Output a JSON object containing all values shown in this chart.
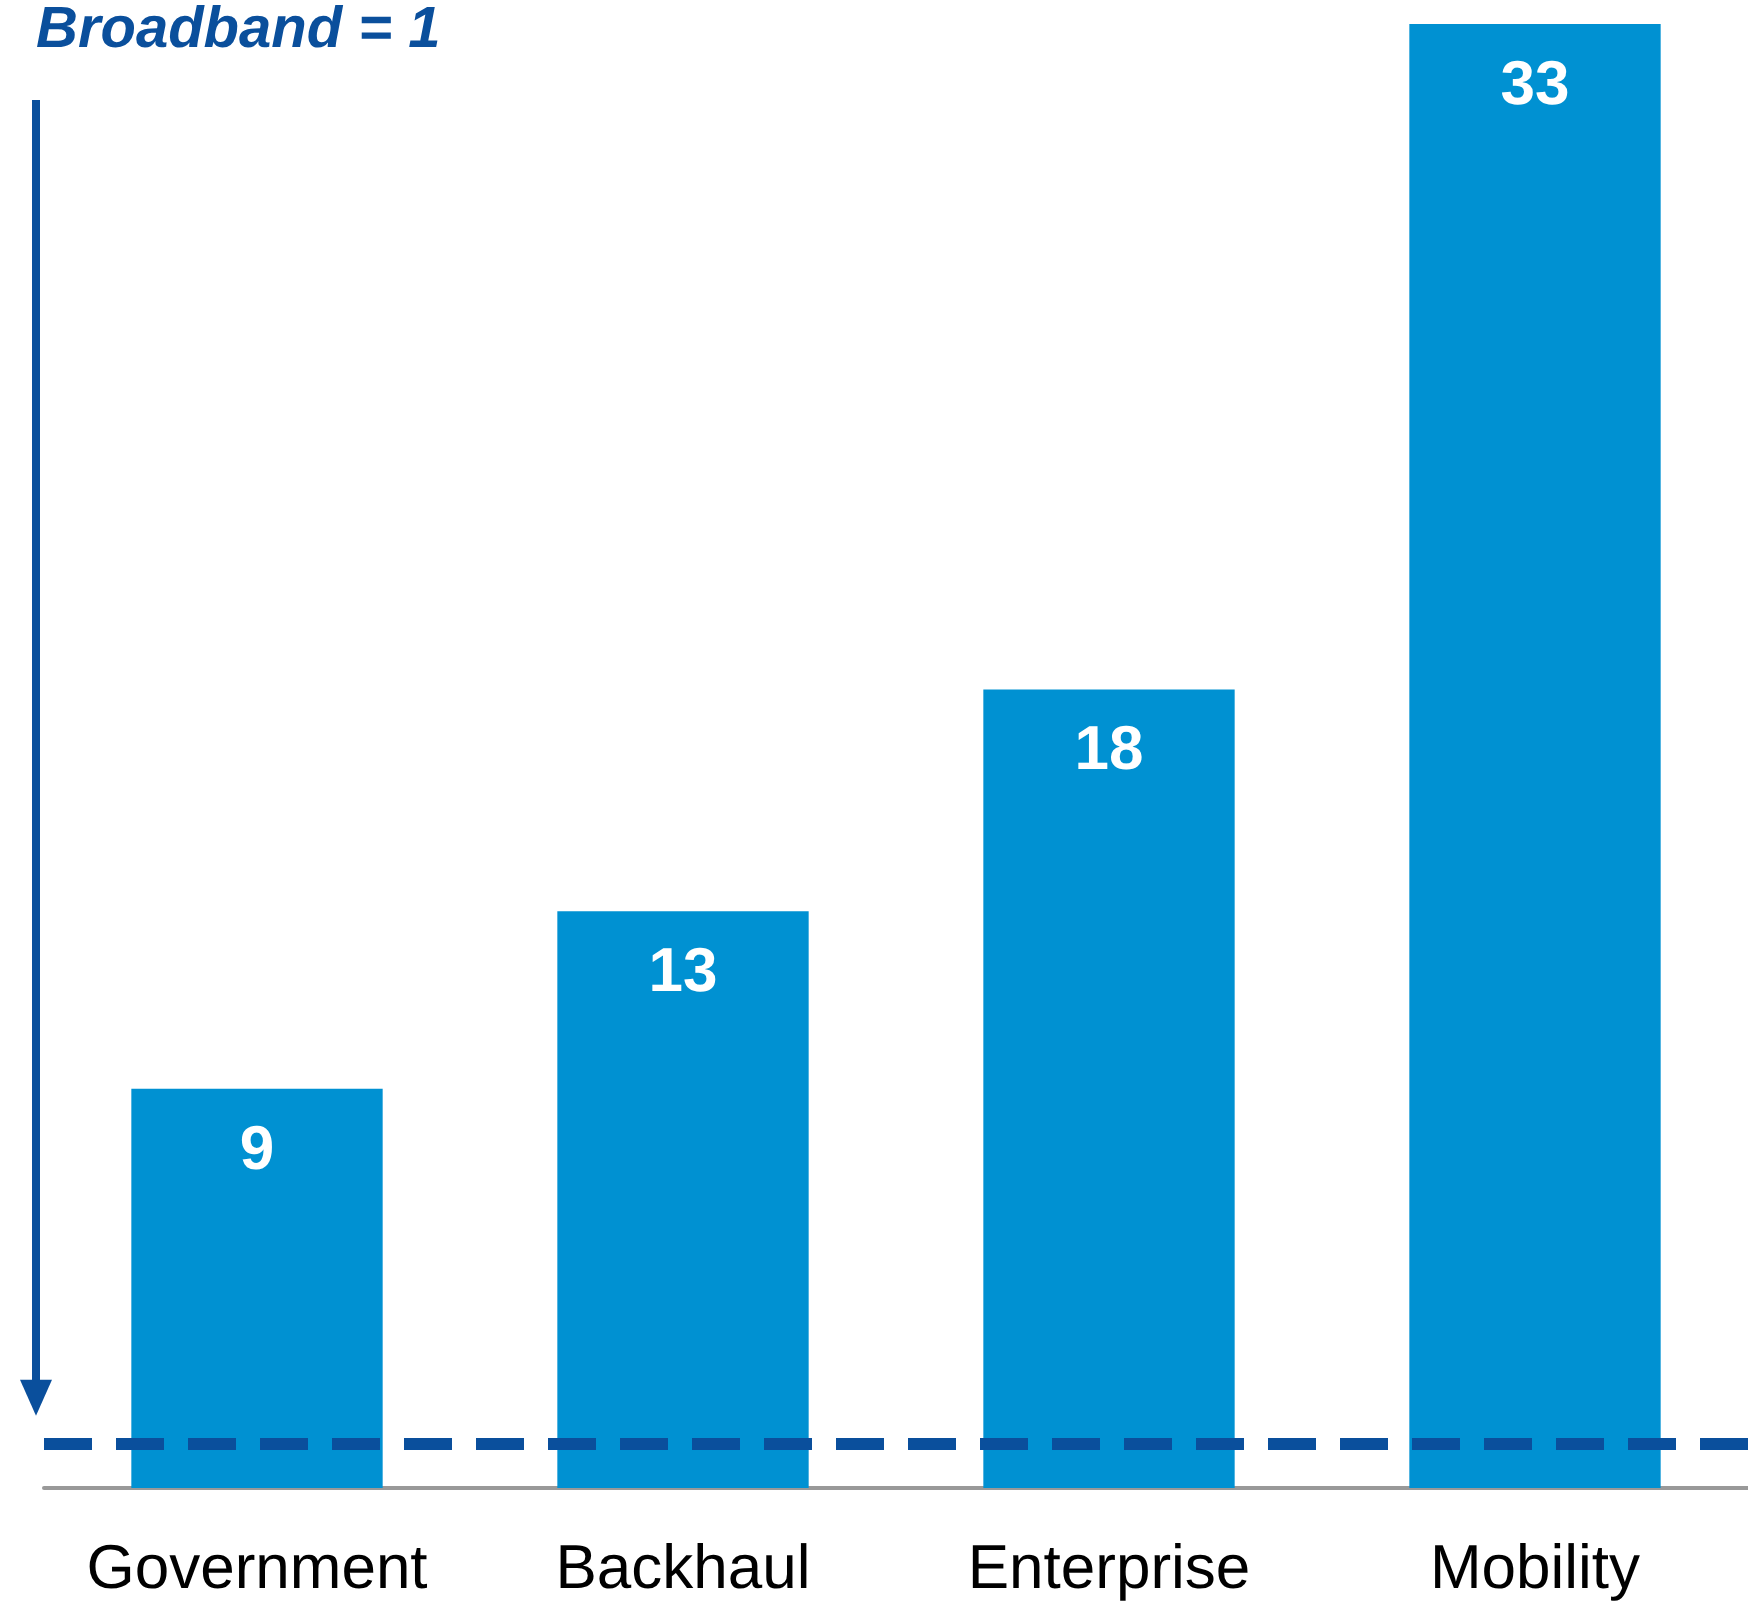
{
  "chart_data": {
    "type": "bar",
    "categories": [
      "Government",
      "Backhaul",
      "Enterprise",
      "Mobility"
    ],
    "values": [
      9,
      13,
      18,
      33
    ],
    "color": "#0091d2",
    "data_labels": true,
    "ref_lines": [
      {
        "axis": "y",
        "value": 1,
        "label": "Broadband = 1",
        "color": "#0a4f9c",
        "line_style": "dashed"
      }
    ]
  }
}
